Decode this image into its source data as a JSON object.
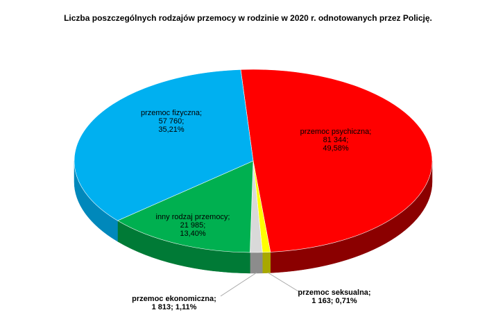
{
  "chart_data": {
    "type": "pie",
    "title": "Liczba poszczególnych rodzajów przemocy w rodzinie w 2020 r. odnotowanych przez Policję.",
    "slices": [
      {
        "name": "przemoc psychiczna",
        "value": 81344,
        "value_label": "81 344;",
        "percent_label": "49,58%",
        "percent": 49.58,
        "color": "#ff0000",
        "side_color": "#8b0000"
      },
      {
        "name": "przemoc seksualna",
        "value": 1163,
        "value_label": "1 163; 0,71%",
        "percent": 0.71,
        "color": "#ffff00",
        "side_color": "#a8a800"
      },
      {
        "name": "przemoc ekonomiczna",
        "value": 1813,
        "value_label": "1 813; 1,11%",
        "percent": 1.11,
        "color": "#d9d9d9",
        "side_color": "#8c8c8c"
      },
      {
        "name": "inny rodzaj przemocy",
        "value": 21985,
        "value_label": "21 985;",
        "percent_label": "13,40%",
        "percent": 13.4,
        "color": "#00b050",
        "side_color": "#007a36"
      },
      {
        "name": "przemoc fizyczna",
        "value": 57760,
        "value_label": "57 760;",
        "percent_label": "35,21%",
        "percent": 35.21,
        "color": "#00b0f0",
        "side_color": "#0088bb"
      }
    ],
    "labels": {
      "psych": [
        "przemoc psychiczna;",
        "81 344;",
        "49,58%"
      ],
      "fiz": [
        "przemoc fizyczna;",
        "57 760;",
        "35,21%"
      ],
      "inny": [
        "inny rodzaj przemocy;",
        "21 985;",
        "13,40%"
      ],
      "ekon": [
        "przemoc ekonomiczna;",
        "1 813; 1,11%"
      ],
      "seks": [
        "przemoc seksualna;",
        "1 163; 0,71%"
      ]
    }
  }
}
